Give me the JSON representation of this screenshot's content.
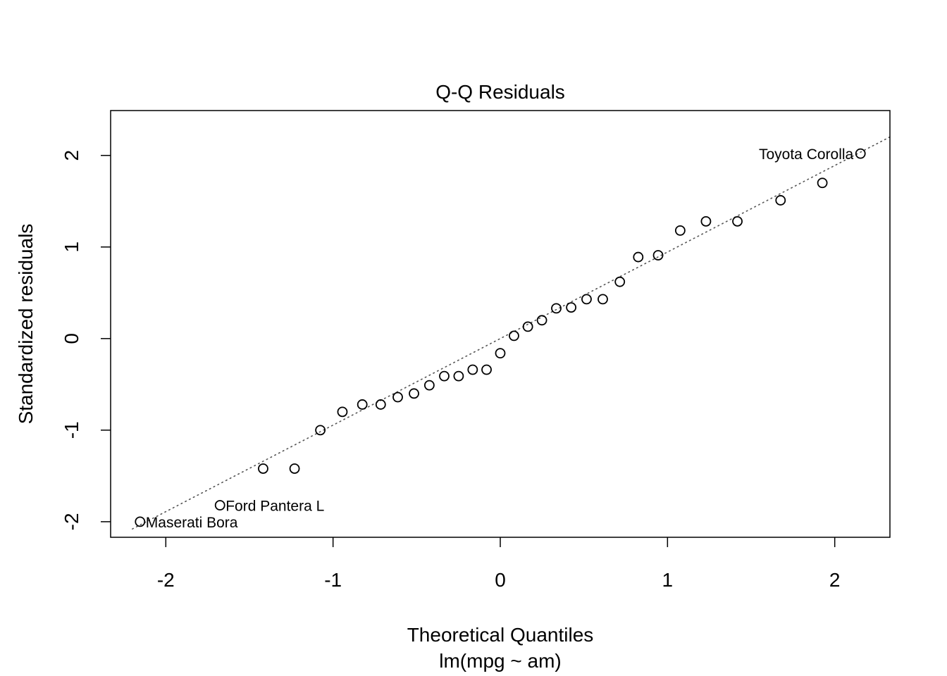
{
  "chart_data": {
    "type": "scatter",
    "title": "Q-Q Residuals",
    "xlabel": "Theoretical Quantiles",
    "subtitle": "lm(mpg ~ am)",
    "ylabel": "Standardized residuals",
    "xlim": [
      -2.33,
      2.33
    ],
    "ylim": [
      -2.17,
      2.49
    ],
    "x_ticks": [
      -2,
      -1,
      0,
      1,
      2
    ],
    "x_tick_labels": [
      "-2",
      "-1",
      "0",
      "1",
      "2"
    ],
    "y_ticks": [
      -2,
      -1,
      0,
      1,
      2
    ],
    "y_tick_labels": [
      "-2",
      "-1",
      "0",
      "1",
      "2"
    ],
    "grid": false,
    "reference_line": {
      "style": "dotted",
      "color": "#555555",
      "intercept": 0.0,
      "slope": 0.945
    },
    "points": [
      {
        "x": -2.154,
        "y": -2.0
      },
      {
        "x": -1.676,
        "y": -1.82
      },
      {
        "x": -1.418,
        "y": -1.42
      },
      {
        "x": -1.23,
        "y": -1.42
      },
      {
        "x": -1.076,
        "y": -1.0
      },
      {
        "x": -0.944,
        "y": -0.8
      },
      {
        "x": -0.825,
        "y": -0.72
      },
      {
        "x": -0.715,
        "y": -0.72
      },
      {
        "x": -0.613,
        "y": -0.64
      },
      {
        "x": -0.516,
        "y": -0.6
      },
      {
        "x": -0.424,
        "y": -0.51
      },
      {
        "x": -0.335,
        "y": -0.41
      },
      {
        "x": -0.249,
        "y": -0.41
      },
      {
        "x": -0.165,
        "y": -0.34
      },
      {
        "x": -0.082,
        "y": -0.34
      },
      {
        "x": 0.0,
        "y": -0.16
      },
      {
        "x": 0.082,
        "y": 0.03
      },
      {
        "x": 0.165,
        "y": 0.13
      },
      {
        "x": 0.249,
        "y": 0.2
      },
      {
        "x": 0.335,
        "y": 0.33
      },
      {
        "x": 0.424,
        "y": 0.34
      },
      {
        "x": 0.516,
        "y": 0.43
      },
      {
        "x": 0.613,
        "y": 0.43
      },
      {
        "x": 0.715,
        "y": 0.62
      },
      {
        "x": 0.825,
        "y": 0.89
      },
      {
        "x": 0.944,
        "y": 0.91
      },
      {
        "x": 1.076,
        "y": 1.18
      },
      {
        "x": 1.23,
        "y": 1.28
      },
      {
        "x": 1.418,
        "y": 1.28
      },
      {
        "x": 1.676,
        "y": 1.51
      },
      {
        "x": 1.926,
        "y": 1.7
      },
      {
        "x": 2.154,
        "y": 2.02
      }
    ],
    "annotations": [
      {
        "label": "Maserati Bora",
        "point_index": 0,
        "side": "right"
      },
      {
        "label": "Ford Pantera L",
        "point_index": 1,
        "side": "right"
      },
      {
        "label": "Toyota Corolla",
        "point_index": 31,
        "side": "left"
      }
    ]
  }
}
